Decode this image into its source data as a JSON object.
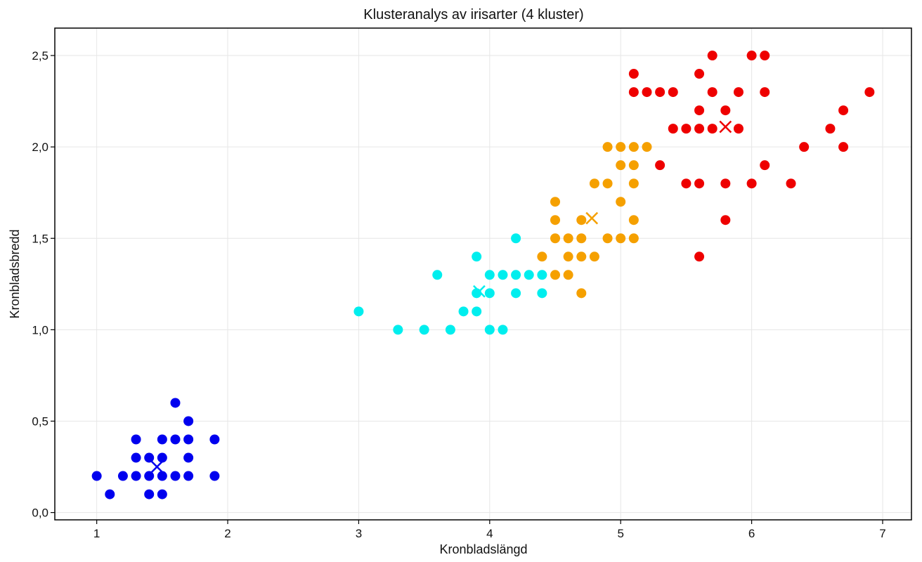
{
  "chart_data": {
    "type": "scatter",
    "title": "Klusteranalys av irisarter (4 kluster)",
    "xlabel": "Kronbladslängd",
    "ylabel": "Kronbladsbredd",
    "xlim": [
      0.68,
      7.22
    ],
    "ylim": [
      -0.04,
      2.65
    ],
    "xticks": [
      1,
      2,
      3,
      4,
      5,
      6,
      7
    ],
    "xtick_labels": [
      "1",
      "2",
      "3",
      "4",
      "5",
      "6",
      "7"
    ],
    "yticks": [
      0.0,
      0.5,
      1.0,
      1.5,
      2.0,
      2.5
    ],
    "ytick_labels": [
      "0,0",
      "0,5",
      "1,0",
      "1,5",
      "2,0",
      "2,5"
    ],
    "grid": true,
    "series": [
      {
        "color": "#0000ee",
        "points": [
          [
            1.0,
            0.2
          ],
          [
            1.1,
            0.1
          ],
          [
            1.2,
            0.2
          ],
          [
            1.3,
            0.2
          ],
          [
            1.3,
            0.3
          ],
          [
            1.3,
            0.4
          ],
          [
            1.4,
            0.1
          ],
          [
            1.4,
            0.2
          ],
          [
            1.4,
            0.3
          ],
          [
            1.5,
            0.1
          ],
          [
            1.5,
            0.2
          ],
          [
            1.5,
            0.3
          ],
          [
            1.5,
            0.4
          ],
          [
            1.6,
            0.2
          ],
          [
            1.6,
            0.4
          ],
          [
            1.6,
            0.6
          ],
          [
            1.7,
            0.2
          ],
          [
            1.7,
            0.3
          ],
          [
            1.7,
            0.4
          ],
          [
            1.7,
            0.5
          ],
          [
            1.9,
            0.2
          ],
          [
            1.9,
            0.4
          ]
        ],
        "centroid": [
          1.46,
          0.25
        ]
      },
      {
        "color": "#00eeee",
        "points": [
          [
            3.0,
            1.1
          ],
          [
            3.3,
            1.0
          ],
          [
            3.5,
            1.0
          ],
          [
            3.6,
            1.3
          ],
          [
            3.7,
            1.0
          ],
          [
            3.8,
            1.1
          ],
          [
            3.9,
            1.1
          ],
          [
            3.9,
            1.2
          ],
          [
            3.9,
            1.4
          ],
          [
            4.0,
            1.0
          ],
          [
            4.0,
            1.2
          ],
          [
            4.0,
            1.3
          ],
          [
            4.1,
            1.0
          ],
          [
            4.1,
            1.3
          ],
          [
            4.2,
            1.2
          ],
          [
            4.2,
            1.3
          ],
          [
            4.2,
            1.5
          ],
          [
            4.3,
            1.3
          ],
          [
            4.4,
            1.2
          ],
          [
            4.4,
            1.3
          ]
        ],
        "centroid": [
          3.92,
          1.21
        ]
      },
      {
        "color": "#f5a000",
        "points": [
          [
            4.4,
            1.4
          ],
          [
            4.5,
            1.3
          ],
          [
            4.5,
            1.5
          ],
          [
            4.5,
            1.6
          ],
          [
            4.5,
            1.7
          ],
          [
            4.6,
            1.3
          ],
          [
            4.6,
            1.4
          ],
          [
            4.6,
            1.5
          ],
          [
            4.7,
            1.2
          ],
          [
            4.7,
            1.4
          ],
          [
            4.7,
            1.5
          ],
          [
            4.7,
            1.6
          ],
          [
            4.8,
            1.4
          ],
          [
            4.8,
            1.8
          ],
          [
            4.9,
            1.5
          ],
          [
            4.9,
            1.8
          ],
          [
            4.9,
            2.0
          ],
          [
            5.0,
            1.5
          ],
          [
            5.0,
            1.7
          ],
          [
            5.0,
            1.9
          ],
          [
            5.0,
            2.0
          ],
          [
            5.1,
            1.5
          ],
          [
            5.1,
            1.6
          ],
          [
            5.1,
            1.8
          ],
          [
            5.1,
            1.9
          ],
          [
            5.1,
            2.0
          ],
          [
            5.2,
            2.0
          ]
        ],
        "centroid": [
          4.78,
          1.61
        ]
      },
      {
        "color": "#ee0000",
        "points": [
          [
            5.1,
            2.3
          ],
          [
            5.1,
            2.4
          ],
          [
            5.2,
            2.3
          ],
          [
            5.3,
            1.9
          ],
          [
            5.3,
            2.3
          ],
          [
            5.4,
            2.1
          ],
          [
            5.4,
            2.3
          ],
          [
            5.5,
            1.8
          ],
          [
            5.5,
            2.1
          ],
          [
            5.6,
            1.4
          ],
          [
            5.6,
            1.8
          ],
          [
            5.6,
            2.1
          ],
          [
            5.6,
            2.2
          ],
          [
            5.6,
            2.4
          ],
          [
            5.7,
            2.1
          ],
          [
            5.7,
            2.3
          ],
          [
            5.7,
            2.5
          ],
          [
            5.8,
            1.6
          ],
          [
            5.8,
            1.8
          ],
          [
            5.8,
            2.2
          ],
          [
            5.9,
            2.1
          ],
          [
            5.9,
            2.3
          ],
          [
            6.0,
            1.8
          ],
          [
            6.0,
            2.5
          ],
          [
            6.1,
            1.9
          ],
          [
            6.1,
            2.3
          ],
          [
            6.1,
            2.5
          ],
          [
            6.3,
            1.8
          ],
          [
            6.4,
            2.0
          ],
          [
            6.6,
            2.1
          ],
          [
            6.7,
            2.0
          ],
          [
            6.7,
            2.2
          ],
          [
            6.9,
            2.3
          ]
        ],
        "centroid": [
          5.8,
          2.11
        ]
      }
    ]
  }
}
